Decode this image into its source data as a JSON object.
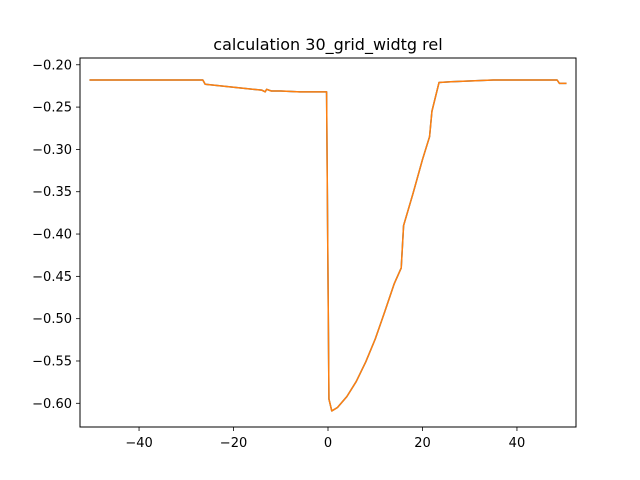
{
  "chart_data": {
    "type": "line",
    "title": "calculation 30_grid_widtg rel",
    "xlabel": "",
    "ylabel": "",
    "xlim": [
      -52.5,
      52.5
    ],
    "ylim": [
      -0.628,
      -0.192
    ],
    "xticks": [
      -40,
      -20,
      0,
      20,
      40
    ],
    "yticks": [
      -0.2,
      -0.25,
      -0.3,
      -0.35,
      -0.4,
      -0.45,
      -0.5,
      -0.55,
      -0.6
    ],
    "xtick_labels": [
      "−40",
      "−20",
      "0",
      "20",
      "40"
    ],
    "ytick_labels": [
      "−0.20",
      "−0.25",
      "−0.30",
      "−0.35",
      "−0.40",
      "−0.45",
      "−0.50",
      "−0.55",
      "−0.60"
    ],
    "grid": false,
    "series": [
      {
        "color": "#1f77b4",
        "x": [
          -50.5,
          -26.5,
          -26,
          -14,
          -13.3,
          -13,
          -12,
          -10,
          -6,
          -1,
          -0.3,
          0.2,
          0.8,
          2,
          4,
          6,
          8,
          10,
          12,
          14,
          15.5,
          16,
          18,
          20,
          21.5,
          22,
          23.5,
          26,
          35,
          48,
          48.5,
          49,
          50.5
        ],
        "y": [
          -0.218,
          -0.218,
          -0.223,
          -0.23,
          -0.232,
          -0.229,
          -0.231,
          -0.231,
          -0.232,
          -0.232,
          -0.232,
          -0.595,
          -0.609,
          -0.605,
          -0.592,
          -0.574,
          -0.551,
          -0.524,
          -0.492,
          -0.459,
          -0.44,
          -0.39,
          -0.352,
          -0.312,
          -0.285,
          -0.255,
          -0.221,
          -0.22,
          -0.218,
          -0.218,
          -0.218,
          -0.222,
          -0.222
        ]
      },
      {
        "color": "#ff7f0e",
        "x": [
          -50.5,
          -26.5,
          -26,
          -14,
          -13.3,
          -13,
          -12,
          -10,
          -6,
          -1,
          -0.3,
          0.2,
          0.8,
          2,
          4,
          6,
          8,
          10,
          12,
          14,
          15.5,
          16,
          18,
          20,
          21.5,
          22,
          23.5,
          26,
          35,
          48,
          48.5,
          49,
          50.5
        ],
        "y": [
          -0.218,
          -0.218,
          -0.223,
          -0.23,
          -0.232,
          -0.229,
          -0.231,
          -0.231,
          -0.232,
          -0.232,
          -0.232,
          -0.595,
          -0.609,
          -0.605,
          -0.592,
          -0.574,
          -0.551,
          -0.524,
          -0.492,
          -0.459,
          -0.44,
          -0.39,
          -0.352,
          -0.312,
          -0.285,
          -0.255,
          -0.221,
          -0.22,
          -0.218,
          -0.218,
          -0.218,
          -0.222,
          -0.222
        ]
      }
    ]
  }
}
